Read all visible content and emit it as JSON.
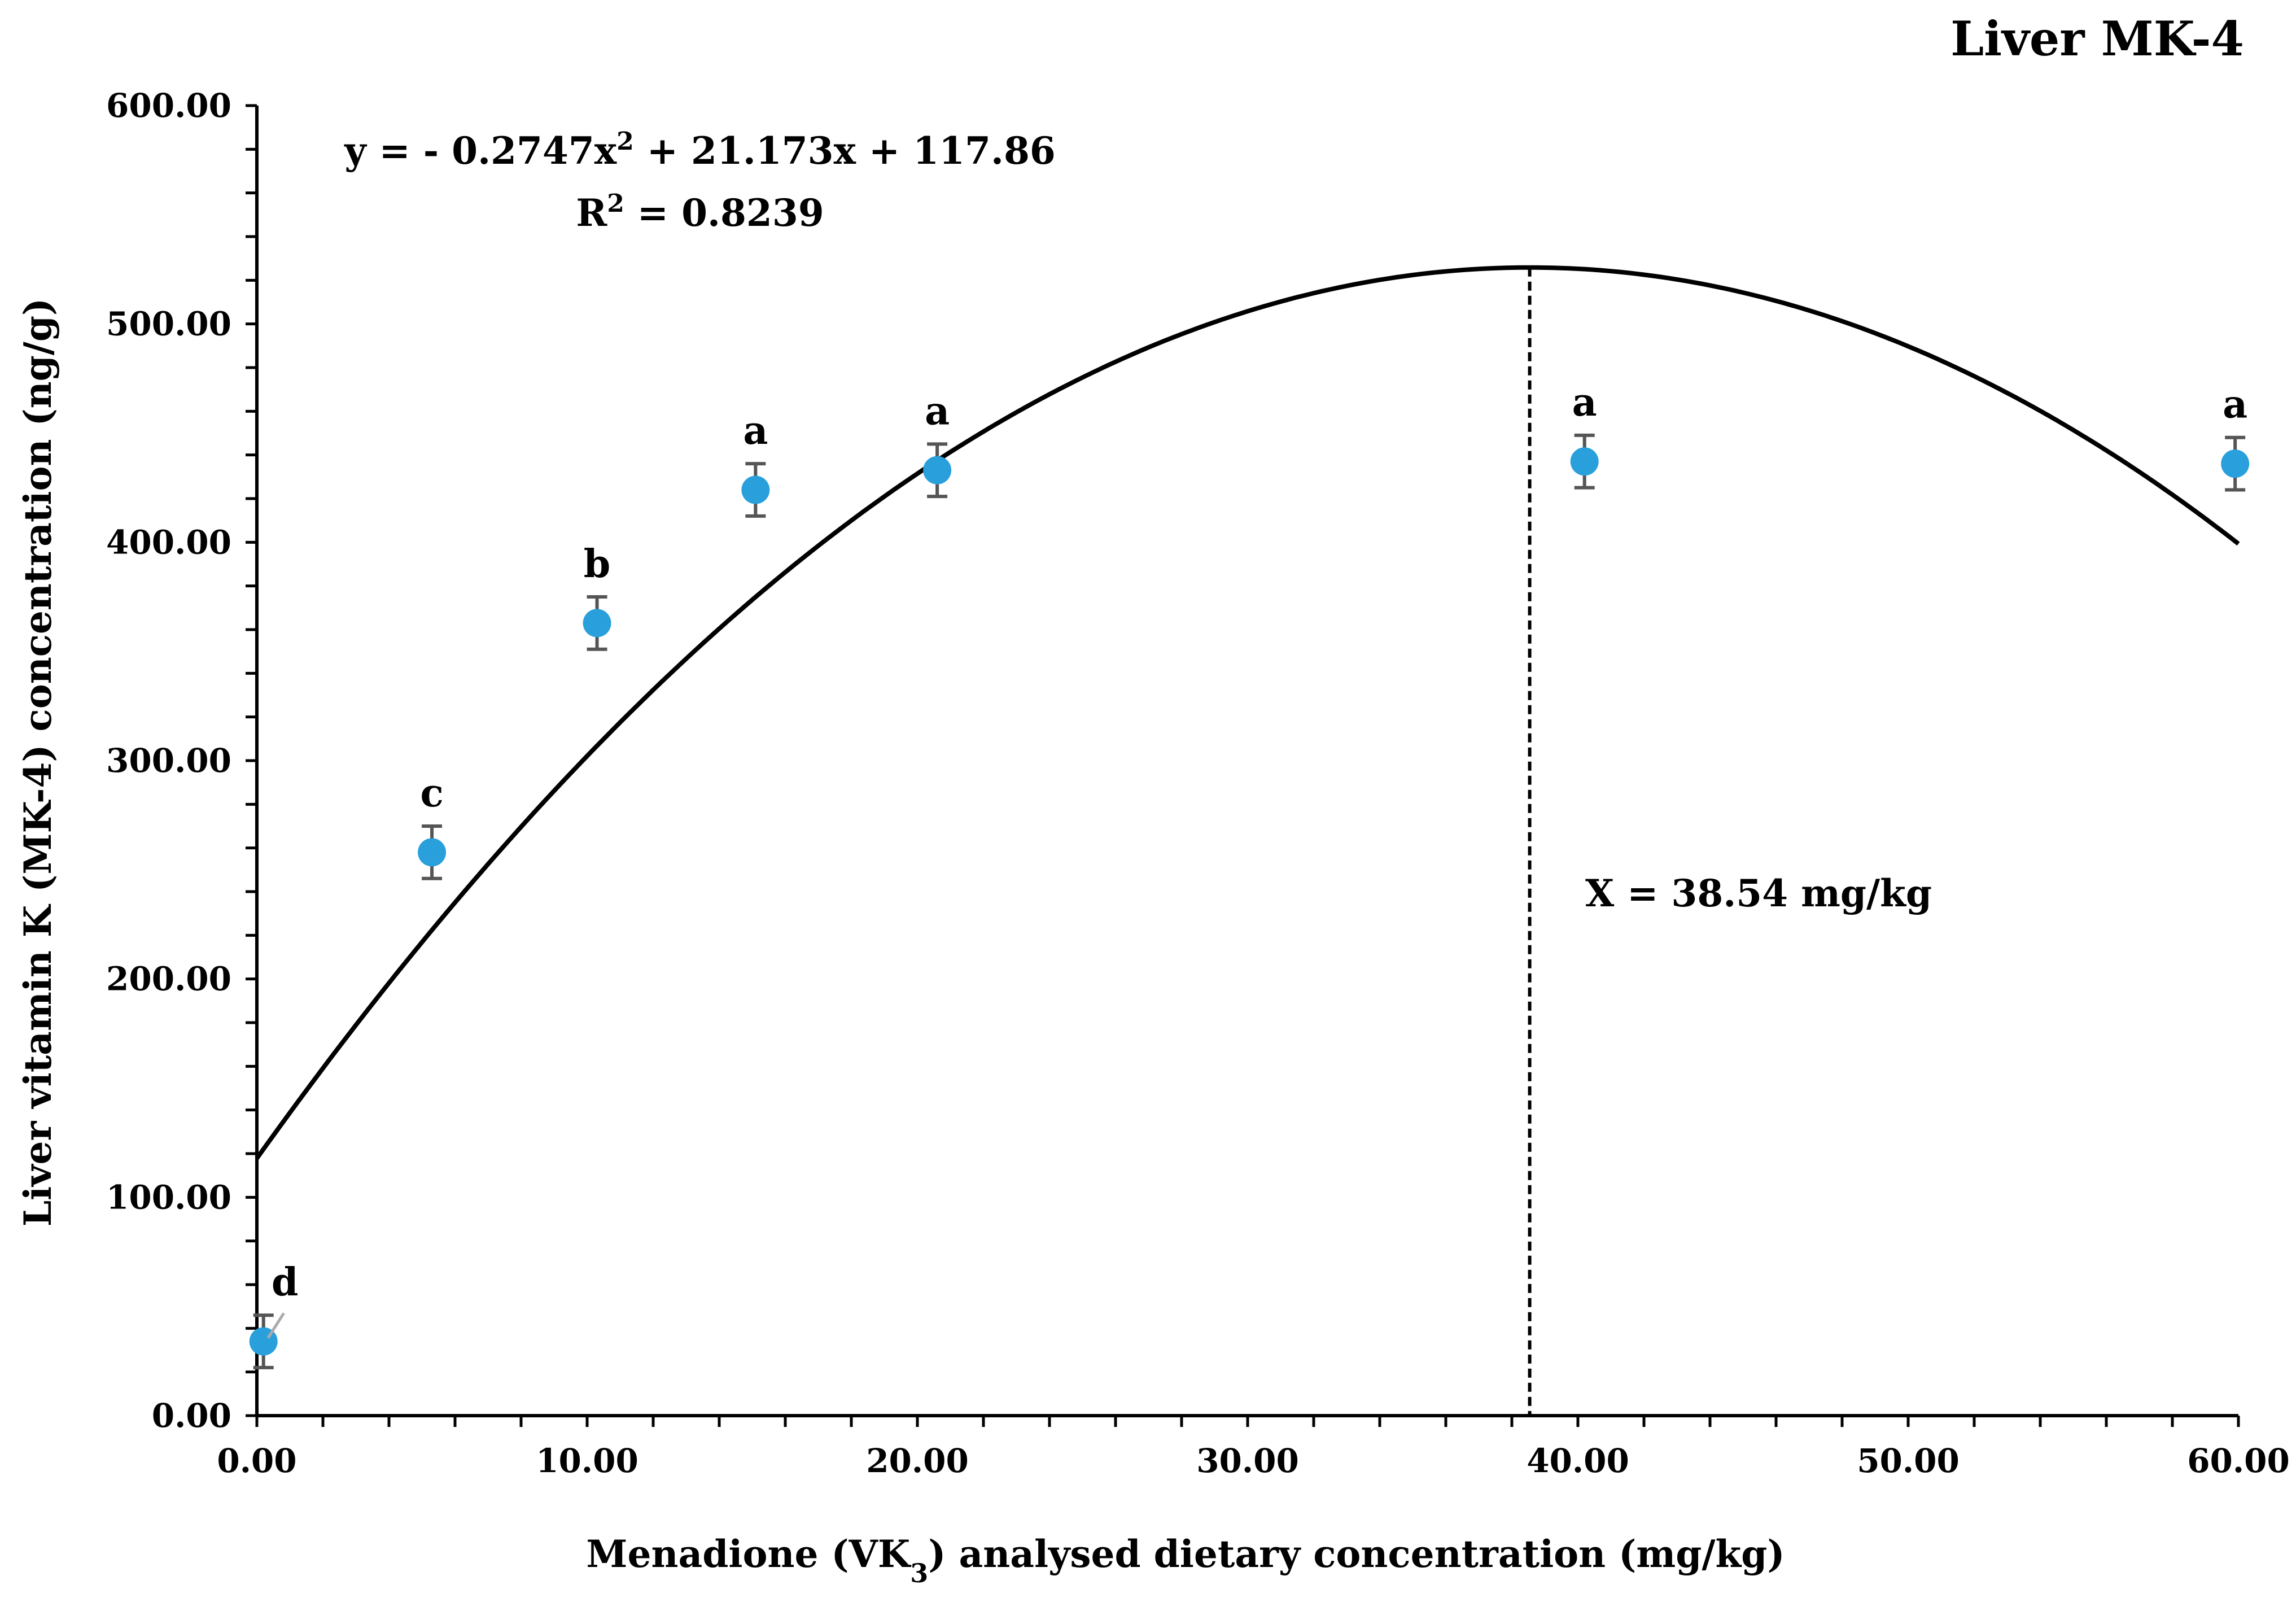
{
  "chart_data": {
    "type": "scatter",
    "title": "Liver MK-4",
    "xlabel": "Menadione (VK3) analysed dietary concentration (mg/kg)",
    "ylabel": "Liver vitamin K (MK-4) concentration (ng/g)",
    "xlim": [
      0,
      60
    ],
    "ylim": [
      0,
      600
    ],
    "x_ticks": [
      "0.00",
      "10.00",
      "20.00",
      "30.00",
      "40.00",
      "50.00",
      "60.00"
    ],
    "y_ticks": [
      "0.00",
      "100.00",
      "200.00",
      "300.00",
      "400.00",
      "500.00",
      "600.00"
    ],
    "x_tick_values": [
      0,
      10,
      20,
      30,
      40,
      50,
      60
    ],
    "y_tick_values": [
      0,
      100,
      200,
      300,
      400,
      500,
      600
    ],
    "grid": false,
    "points": [
      {
        "x": 0.2,
        "y": 34,
        "err": 12,
        "label": "d"
      },
      {
        "x": 5.3,
        "y": 258,
        "err": 12,
        "label": "c"
      },
      {
        "x": 10.3,
        "y": 363,
        "err": 12,
        "label": "b"
      },
      {
        "x": 15.1,
        "y": 424,
        "err": 12,
        "label": "a"
      },
      {
        "x": 20.6,
        "y": 433,
        "err": 12,
        "label": "a"
      },
      {
        "x": 40.2,
        "y": 437,
        "err": 12,
        "label": "a"
      },
      {
        "x": 59.9,
        "y": 436,
        "err": 12,
        "label": "a"
      }
    ],
    "trendline": {
      "a": -0.2747,
      "b": 21.173,
      "c": 117.86,
      "x_range": [
        0,
        60
      ]
    },
    "equation_prefix": "y = - 0.2747x",
    "equation_suffix": " + 21.173x + 117.86",
    "r2_prefix": "R",
    "r2_suffix": " = 0.8239",
    "superscript": "2",
    "vline_x": 38.54,
    "vline_label": "X = 38.54 mg/kg",
    "colors": {
      "point": "#29a0db",
      "errorbar": "#555555",
      "trendline": "#000000",
      "vline": "#000000"
    }
  }
}
